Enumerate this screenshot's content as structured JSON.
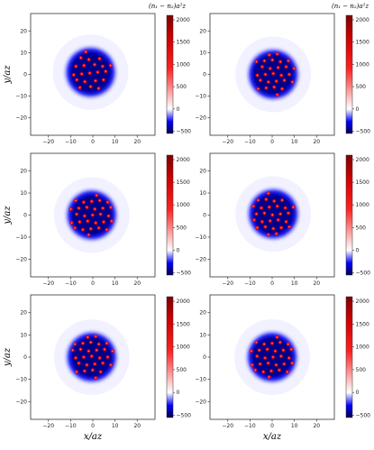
{
  "chart_data": {
    "type": "heatmap",
    "colormap": "seismic",
    "colorbar_label": "(n₁ − n₂)a²z",
    "xlabel": "x/az",
    "ylabel": "y/az",
    "xlim": [
      -28,
      28
    ],
    "ylim": [
      -28,
      28
    ],
    "xticks": [
      "−20",
      "−10",
      "0",
      "10",
      "20"
    ],
    "yticks": [
      "20",
      "10",
      "0",
      "−10",
      "−20"
    ],
    "colorbar_range": [
      -550,
      2100
    ],
    "colorbar_ticks": [
      "2000",
      "1500",
      "1000",
      "500",
      "0",
      "−500"
    ],
    "panels": [
      {
        "center": [
          -1,
          1
        ],
        "radius": 11,
        "vortex_count": 30
      },
      {
        "center": [
          0.5,
          0
        ],
        "radius": 11,
        "vortex_count": 30
      },
      {
        "center": [
          -0.5,
          0
        ],
        "radius": 11,
        "vortex_count": 30
      },
      {
        "center": [
          0.5,
          0.5
        ],
        "radius": 11,
        "vortex_count": 30
      },
      {
        "center": [
          -0.5,
          0
        ],
        "radius": 11,
        "vortex_count": 30
      },
      {
        "center": [
          0,
          0
        ],
        "radius": 11,
        "vortex_count": 30
      }
    ]
  }
}
